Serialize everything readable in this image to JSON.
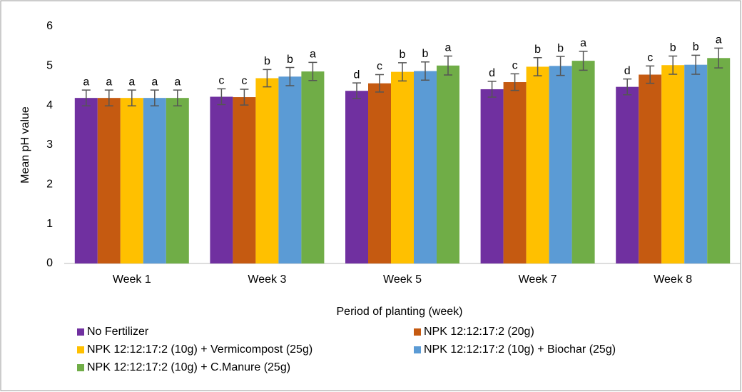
{
  "chart_data": {
    "type": "bar",
    "x_label": "Period of planting (week)",
    "y_label": "Mean pH value",
    "categories": [
      "Week 1",
      "Week 3",
      "Week 5",
      "Week 7",
      "Week 8"
    ],
    "series": [
      {
        "name": "No Fertilizer",
        "color": "#7030a0",
        "values": [
          4.19,
          4.22,
          4.37,
          4.41,
          4.47
        ],
        "errors": [
          0.2,
          0.2,
          0.2,
          0.2,
          0.2
        ],
        "letters": [
          "a",
          "c",
          "d",
          "d",
          "d"
        ]
      },
      {
        "name": "NPK 12:12:17:2 (20g)",
        "color": "#c55a11",
        "values": [
          4.19,
          4.21,
          4.56,
          4.59,
          4.78
        ],
        "errors": [
          0.2,
          0.2,
          0.22,
          0.21,
          0.22
        ],
        "letters": [
          "a",
          "c",
          "c",
          "c",
          "c"
        ]
      },
      {
        "name": "NPK 12:12:17:2 (10g) + Vermicompost (25g)",
        "color": "#ffc000",
        "values": [
          4.19,
          4.69,
          4.85,
          4.98,
          5.02
        ],
        "errors": [
          0.2,
          0.22,
          0.23,
          0.23,
          0.23
        ],
        "letters": [
          "a",
          "b",
          "b",
          "b",
          "b"
        ]
      },
      {
        "name": "NPK 12:12:17:2 (10g) + Biochar (25g)",
        "color": "#5b9bd5",
        "values": [
          4.19,
          4.73,
          4.87,
          5.0,
          5.03
        ],
        "errors": [
          0.2,
          0.23,
          0.23,
          0.24,
          0.24
        ],
        "letters": [
          "a",
          "b",
          "b",
          "b",
          "b"
        ]
      },
      {
        "name": "NPK 12:12:17:2 (10g) + C.Manure (25g)",
        "color": "#70ad47",
        "values": [
          4.19,
          4.86,
          5.01,
          5.13,
          5.2
        ],
        "errors": [
          0.2,
          0.23,
          0.24,
          0.24,
          0.25
        ],
        "letters": [
          "a",
          "a",
          "a",
          "a",
          "a"
        ]
      }
    ],
    "ylim": [
      0,
      6
    ],
    "yticks": [
      0,
      1,
      2,
      3,
      4,
      5,
      6
    ],
    "grid": false,
    "legend": "bottom"
  }
}
